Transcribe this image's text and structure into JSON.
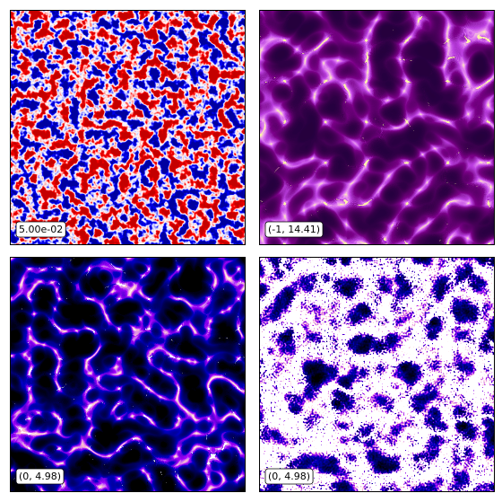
{
  "panels": [
    {
      "label": "5.00e-02"
    },
    {
      "label": "(-1, 14.41)"
    },
    {
      "label": "(0, 4.98)"
    },
    {
      "label": "(0, 4.98)"
    }
  ]
}
